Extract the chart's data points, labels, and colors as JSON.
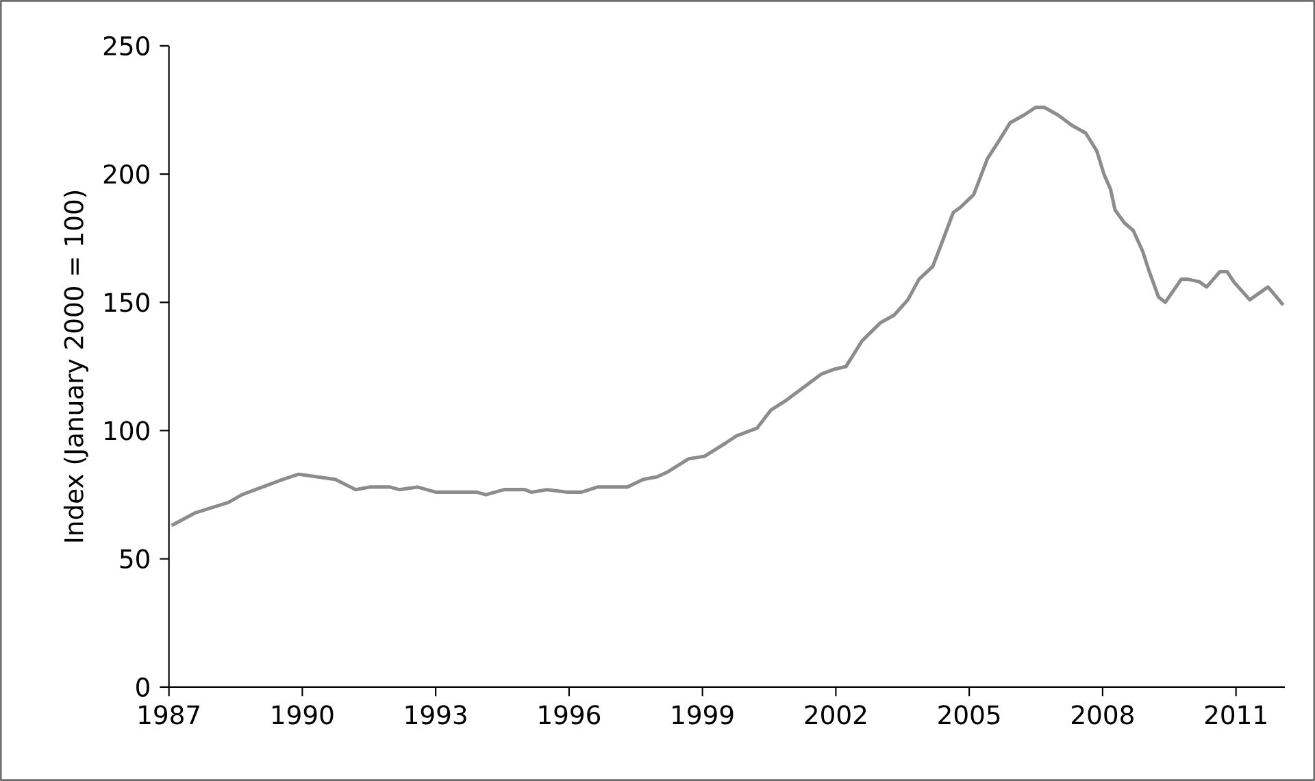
{
  "chart_data": {
    "type": "line",
    "ylabel": "Index (January 2000 = 100)",
    "xlim": [
      1987,
      2012.1
    ],
    "ylim": [
      0,
      250
    ],
    "xticks": [
      1987,
      1990,
      1993,
      1996,
      1999,
      2002,
      2005,
      2008,
      2011
    ],
    "yticks": [
      0,
      50,
      100,
      150,
      200,
      250
    ],
    "marker": "none",
    "line_style": "solid",
    "series": [
      {
        "color": "#8c8c8c",
        "x": [
          1987.06,
          1987.6,
          1988.34,
          1988.64,
          1989.57,
          1989.92,
          1990.74,
          1991.2,
          1991.51,
          1991.97,
          1992.18,
          1992.59,
          1993.0,
          1993.92,
          1994.13,
          1994.54,
          1995.0,
          1995.15,
          1995.51,
          1995.97,
          1996.28,
          1996.64,
          1997.31,
          1997.67,
          1997.98,
          1998.23,
          1998.69,
          1999.05,
          1999.51,
          1999.77,
          2000.23,
          2000.54,
          2000.9,
          2001.67,
          2001.98,
          2002.23,
          2002.59,
          2003.0,
          2003.31,
          2003.62,
          2003.87,
          2004.18,
          2004.38,
          2004.64,
          2004.8,
          2005.1,
          2005.41,
          2005.67,
          2005.92,
          2006.23,
          2006.49,
          2006.69,
          2007.0,
          2007.31,
          2007.62,
          2007.87,
          2008.03,
          2008.18,
          2008.28,
          2008.49,
          2008.69,
          2008.9,
          2009.05,
          2009.26,
          2009.41,
          2009.77,
          2009.92,
          2010.18,
          2010.34,
          2010.64,
          2010.8,
          2010.95,
          2011.31,
          2011.72,
          2011.82,
          2012.06
        ],
        "values": [
          63,
          68,
          72,
          75,
          81,
          83,
          81,
          77,
          78,
          78,
          77,
          78,
          76,
          76,
          75,
          77,
          77,
          76,
          77,
          76,
          76,
          78,
          78,
          81,
          82,
          84,
          89,
          90,
          95,
          98,
          101,
          108,
          112,
          122,
          124,
          125,
          135,
          142,
          145,
          151,
          159,
          164,
          173,
          185,
          187,
          192,
          206,
          213,
          220,
          223,
          226,
          226,
          223,
          219,
          216,
          209,
          200,
          194,
          186,
          181,
          178,
          170,
          162,
          152,
          150,
          159,
          159,
          158,
          156,
          162,
          162,
          158,
          151,
          156,
          154,
          149
        ]
      }
    ]
  }
}
